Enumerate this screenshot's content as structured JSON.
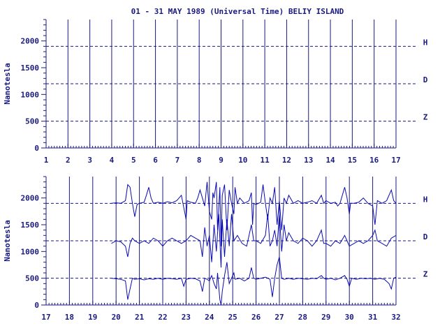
{
  "colors": {
    "ink": "#1a1a80",
    "trace": "#0b0bb0",
    "background": "#ffffff"
  },
  "chart_data": [
    {
      "type": "line",
      "title": "01 - 31 MAY 1989 (Universal Time) BELIY ISLAND",
      "ylabel": "Nanotesla",
      "xlim": [
        1,
        17
      ],
      "ylim": [
        0,
        2400
      ],
      "x_ticks": [
        "1",
        "2",
        "3",
        "4",
        "5",
        "6",
        "7",
        "8",
        "9",
        "10",
        "11",
        "12",
        "13",
        "14",
        "15",
        "16",
        "17"
      ],
      "y_ticks": [
        0,
        500,
        1000,
        1500,
        2000
      ],
      "grid": "vertical lines at each day",
      "component_baselines": [
        {
          "name": "H",
          "value": 1900
        },
        {
          "name": "D",
          "value": 1200
        },
        {
          "name": "Z",
          "value": 500
        }
      ],
      "series": [
        {
          "name": "H",
          "points": []
        },
        {
          "name": "D",
          "points": []
        },
        {
          "name": "Z",
          "points": []
        }
      ]
    },
    {
      "type": "line",
      "title": "",
      "ylabel": "Nanotesla",
      "xlim": [
        17,
        32
      ],
      "ylim": [
        0,
        2400
      ],
      "x_ticks": [
        "17",
        "18",
        "19",
        "20",
        "21",
        "22",
        "23",
        "24",
        "25",
        "26",
        "27",
        "28",
        "29",
        "30",
        "31",
        "32"
      ],
      "y_ticks": [
        0,
        500,
        1000,
        1500,
        2000
      ],
      "grid": "vertical lines at each day",
      "component_baselines": [
        {
          "name": "H",
          "value": 1900
        },
        {
          "name": "D",
          "value": 1200
        },
        {
          "name": "Z",
          "value": 500
        }
      ],
      "series": [
        {
          "name": "H",
          "points": [
            [
              19.8,
              1900
            ],
            [
              20.0,
              1910
            ],
            [
              20.2,
              1900
            ],
            [
              20.4,
              1950
            ],
            [
              20.5,
              2250
            ],
            [
              20.6,
              2200
            ],
            [
              20.7,
              1900
            ],
            [
              20.8,
              1650
            ],
            [
              20.9,
              1880
            ],
            [
              21.0,
              1900
            ],
            [
              21.2,
              1920
            ],
            [
              21.3,
              2050
            ],
            [
              21.4,
              2200
            ],
            [
              21.5,
              2000
            ],
            [
              21.6,
              1900
            ],
            [
              21.8,
              1920
            ],
            [
              22.0,
              1900
            ],
            [
              22.2,
              1930
            ],
            [
              22.4,
              1910
            ],
            [
              22.6,
              1950
            ],
            [
              22.8,
              2050
            ],
            [
              23.0,
              1600
            ],
            [
              23.05,
              1950
            ],
            [
              23.2,
              1920
            ],
            [
              23.4,
              1900
            ],
            [
              23.5,
              2000
            ],
            [
              23.6,
              2150
            ],
            [
              23.7,
              2000
            ],
            [
              23.8,
              1850
            ],
            [
              23.9,
              2300
            ],
            [
              24.0,
              1750
            ],
            [
              24.1,
              1600
            ],
            [
              24.15,
              2100
            ],
            [
              24.2,
              2000
            ],
            [
              24.3,
              2300
            ],
            [
              24.35,
              1400
            ],
            [
              24.45,
              2200
            ],
            [
              24.5,
              1100
            ],
            [
              24.55,
              2050
            ],
            [
              24.65,
              2250
            ],
            [
              24.75,
              1400
            ],
            [
              24.85,
              2150
            ],
            [
              24.95,
              1900
            ],
            [
              25.05,
              1700
            ],
            [
              25.1,
              2200
            ],
            [
              25.2,
              1900
            ],
            [
              25.3,
              2000
            ],
            [
              25.5,
              1900
            ],
            [
              25.7,
              1950
            ],
            [
              25.8,
              2100
            ],
            [
              25.85,
              1500
            ],
            [
              25.9,
              1900
            ],
            [
              26.0,
              1880
            ],
            [
              26.2,
              1920
            ],
            [
              26.3,
              2250
            ],
            [
              26.4,
              1900
            ],
            [
              26.5,
              1600
            ],
            [
              26.6,
              2000
            ],
            [
              26.7,
              1900
            ],
            [
              26.8,
              2200
            ],
            [
              26.9,
              1500
            ],
            [
              27.0,
              1950
            ],
            [
              27.1,
              1400
            ],
            [
              27.2,
              2000
            ],
            [
              27.3,
              1900
            ],
            [
              27.4,
              2050
            ],
            [
              27.6,
              1900
            ],
            [
              27.8,
              1950
            ],
            [
              28.0,
              1900
            ],
            [
              28.2,
              1920
            ],
            [
              28.4,
              1950
            ],
            [
              28.6,
              1900
            ],
            [
              28.8,
              2050
            ],
            [
              28.9,
              1900
            ],
            [
              29.0,
              1950
            ],
            [
              29.2,
              1900
            ],
            [
              29.4,
              1920
            ],
            [
              29.5,
              1850
            ],
            [
              29.6,
              1900
            ],
            [
              29.8,
              2200
            ],
            [
              29.9,
              2000
            ],
            [
              30.0,
              1700
            ],
            [
              30.05,
              1900
            ],
            [
              30.2,
              1900
            ],
            [
              30.4,
              1920
            ],
            [
              30.6,
              2000
            ],
            [
              30.8,
              1900
            ],
            [
              31.0,
              1850
            ],
            [
              31.1,
              1500
            ],
            [
              31.2,
              1950
            ],
            [
              31.4,
              1900
            ],
            [
              31.6,
              1950
            ],
            [
              31.8,
              2150
            ],
            [
              31.9,
              1950
            ],
            [
              32.0,
              1900
            ]
          ]
        },
        {
          "name": "D",
          "points": [
            [
              19.8,
              1150
            ],
            [
              20.0,
              1200
            ],
            [
              20.2,
              1180
            ],
            [
              20.4,
              1100
            ],
            [
              20.5,
              900
            ],
            [
              20.6,
              1150
            ],
            [
              20.7,
              1250
            ],
            [
              20.8,
              1200
            ],
            [
              21.0,
              1150
            ],
            [
              21.2,
              1200
            ],
            [
              21.4,
              1150
            ],
            [
              21.6,
              1250
            ],
            [
              21.8,
              1200
            ],
            [
              22.0,
              1100
            ],
            [
              22.2,
              1200
            ],
            [
              22.4,
              1250
            ],
            [
              22.6,
              1200
            ],
            [
              22.8,
              1150
            ],
            [
              23.0,
              1200
            ],
            [
              23.2,
              1300
            ],
            [
              23.4,
              1250
            ],
            [
              23.6,
              1200
            ],
            [
              23.7,
              900
            ],
            [
              23.8,
              1450
            ],
            [
              23.9,
              1100
            ],
            [
              24.0,
              1300
            ],
            [
              24.1,
              800
            ],
            [
              24.2,
              1500
            ],
            [
              24.3,
              1000
            ],
            [
              24.4,
              1700
            ],
            [
              24.5,
              700
            ],
            [
              24.55,
              1600
            ],
            [
              24.65,
              900
            ],
            [
              24.75,
              1600
            ],
            [
              24.85,
              1100
            ],
            [
              24.95,
              1700
            ],
            [
              25.05,
              1200
            ],
            [
              25.2,
              1300
            ],
            [
              25.4,
              1150
            ],
            [
              25.6,
              1100
            ],
            [
              25.8,
              1500
            ],
            [
              25.9,
              1200
            ],
            [
              26.0,
              1200
            ],
            [
              26.2,
              1150
            ],
            [
              26.4,
              1300
            ],
            [
              26.5,
              1700
            ],
            [
              26.6,
              1100
            ],
            [
              26.7,
              1200
            ],
            [
              26.8,
              1400
            ],
            [
              26.9,
              1100
            ],
            [
              27.0,
              1700
            ],
            [
              27.1,
              1000
            ],
            [
              27.2,
              1500
            ],
            [
              27.3,
              1200
            ],
            [
              27.4,
              1350
            ],
            [
              27.6,
              1200
            ],
            [
              27.8,
              1150
            ],
            [
              28.0,
              1250
            ],
            [
              28.2,
              1200
            ],
            [
              28.4,
              1100
            ],
            [
              28.6,
              1200
            ],
            [
              28.8,
              1400
            ],
            [
              28.9,
              1150
            ],
            [
              29.0,
              1150
            ],
            [
              29.2,
              1100
            ],
            [
              29.4,
              1200
            ],
            [
              29.6,
              1150
            ],
            [
              29.8,
              1300
            ],
            [
              29.9,
              1200
            ],
            [
              30.0,
              1100
            ],
            [
              30.2,
              1150
            ],
            [
              30.4,
              1200
            ],
            [
              30.6,
              1150
            ],
            [
              30.8,
              1200
            ],
            [
              31.0,
              1300
            ],
            [
              31.1,
              1400
            ],
            [
              31.2,
              1200
            ],
            [
              31.4,
              1150
            ],
            [
              31.6,
              1100
            ],
            [
              31.8,
              1250
            ],
            [
              32.0,
              1300
            ]
          ]
        },
        {
          "name": "Z",
          "points": [
            [
              19.8,
              500
            ],
            [
              20.0,
              490
            ],
            [
              20.2,
              480
            ],
            [
              20.4,
              450
            ],
            [
              20.5,
              100
            ],
            [
              20.6,
              300
            ],
            [
              20.7,
              500
            ],
            [
              20.8,
              480
            ],
            [
              21.0,
              490
            ],
            [
              21.2,
              470
            ],
            [
              21.4,
              490
            ],
            [
              21.6,
              480
            ],
            [
              21.8,
              500
            ],
            [
              22.0,
              480
            ],
            [
              22.2,
              500
            ],
            [
              22.4,
              490
            ],
            [
              22.6,
              480
            ],
            [
              22.8,
              500
            ],
            [
              22.9,
              350
            ],
            [
              23.0,
              480
            ],
            [
              23.2,
              500
            ],
            [
              23.4,
              490
            ],
            [
              23.6,
              450
            ],
            [
              23.7,
              250
            ],
            [
              23.8,
              500
            ],
            [
              23.9,
              480
            ],
            [
              24.0,
              450
            ],
            [
              24.1,
              550
            ],
            [
              24.2,
              400
            ],
            [
              24.3,
              300
            ],
            [
              24.35,
              600
            ],
            [
              24.45,
              100
            ],
            [
              24.5,
              0
            ],
            [
              24.55,
              250
            ],
            [
              24.65,
              550
            ],
            [
              24.75,
              800
            ],
            [
              24.85,
              400
            ],
            [
              24.95,
              500
            ],
            [
              25.05,
              600
            ],
            [
              25.1,
              480
            ],
            [
              25.3,
              500
            ],
            [
              25.5,
              450
            ],
            [
              25.7,
              500
            ],
            [
              25.8,
              700
            ],
            [
              25.9,
              500
            ],
            [
              26.0,
              480
            ],
            [
              26.2,
              500
            ],
            [
              26.4,
              520
            ],
            [
              26.6,
              480
            ],
            [
              26.7,
              150
            ],
            [
              26.8,
              500
            ],
            [
              26.9,
              750
            ],
            [
              27.0,
              900
            ],
            [
              27.1,
              500
            ],
            [
              27.2,
              480
            ],
            [
              27.4,
              500
            ],
            [
              27.6,
              480
            ],
            [
              27.8,
              500
            ],
            [
              28.0,
              490
            ],
            [
              28.2,
              480
            ],
            [
              28.4,
              500
            ],
            [
              28.6,
              490
            ],
            [
              28.8,
              550
            ],
            [
              28.9,
              500
            ],
            [
              29.0,
              480
            ],
            [
              29.2,
              500
            ],
            [
              29.4,
              470
            ],
            [
              29.6,
              500
            ],
            [
              29.8,
              550
            ],
            [
              29.9,
              480
            ],
            [
              30.0,
              350
            ],
            [
              30.1,
              500
            ],
            [
              30.3,
              480
            ],
            [
              30.5,
              500
            ],
            [
              30.7,
              490
            ],
            [
              30.9,
              500
            ],
            [
              31.1,
              480
            ],
            [
              31.3,
              500
            ],
            [
              31.5,
              480
            ],
            [
              31.7,
              400
            ],
            [
              31.8,
              300
            ],
            [
              31.9,
              500
            ],
            [
              32.0,
              520
            ]
          ]
        }
      ]
    }
  ]
}
